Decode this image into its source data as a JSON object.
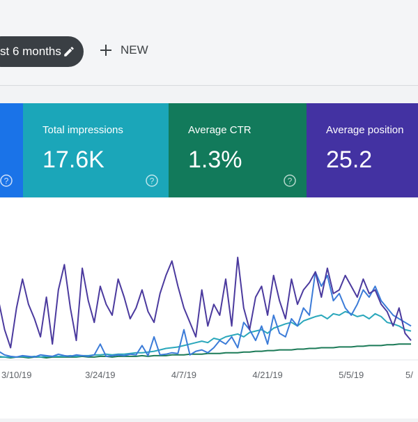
{
  "filter": {
    "label": "st 6 months"
  },
  "new_button": "NEW",
  "cards": [
    {
      "title": "Total impressions",
      "value": "17.6K"
    },
    {
      "title": "Average CTR",
      "value": "1.3%"
    },
    {
      "title": "Average position",
      "value": "25.2"
    }
  ],
  "chart_data": {
    "type": "line",
    "categories": [
      null,
      null,
      null,
      "3/10/19",
      null,
      null,
      null,
      null,
      null,
      null,
      null,
      null,
      null,
      null,
      null,
      null,
      null,
      "3/24/19",
      null,
      null,
      null,
      null,
      null,
      null,
      null,
      null,
      null,
      null,
      null,
      null,
      null,
      "4/7/19",
      null,
      null,
      null,
      null,
      null,
      null,
      null,
      null,
      null,
      null,
      null,
      null,
      null,
      "4/21/19",
      null,
      null,
      null,
      null,
      null,
      null,
      null,
      null,
      null,
      null,
      null,
      null,
      null,
      "5/5/19",
      null,
      null,
      null,
      null,
      null,
      null,
      null,
      null,
      null,
      "5/"
    ],
    "series": [
      {
        "color": "#4b3a9e",
        "values": [
          80,
          40,
          15,
          70,
          110,
          75,
          55,
          30,
          85,
          20,
          95,
          130,
          70,
          25,
          125,
          80,
          50,
          100,
          75,
          60,
          110,
          85,
          55,
          70,
          95,
          65,
          50,
          90,
          115,
          135,
          100,
          70,
          50,
          30,
          95,
          45,
          75,
          60,
          110,
          45,
          140,
          70,
          40,
          85,
          100,
          60,
          115,
          80,
          55,
          110,
          75,
          95,
          105,
          120,
          85,
          125,
          90,
          95,
          115,
          100,
          85,
          110,
          90,
          95,
          75,
          65,
          45,
          70,
          35,
          25
        ]
      },
      {
        "color": "#3b7bd8",
        "values": [
          10,
          5,
          3,
          2,
          4,
          3,
          2,
          5,
          4,
          3,
          6,
          4,
          3,
          5,
          4,
          3,
          5,
          20,
          3,
          4,
          5,
          4,
          6,
          5,
          18,
          4,
          30,
          5,
          6,
          8,
          7,
          40,
          5,
          10,
          12,
          8,
          15,
          25,
          20,
          30,
          15,
          50,
          40,
          25,
          45,
          20,
          60,
          35,
          30,
          55,
          45,
          70,
          60,
          120,
          100,
          115,
          80,
          90,
          70,
          60,
          75,
          95,
          85,
          100,
          80,
          70,
          60,
          55,
          50,
          45
        ]
      },
      {
        "color": "#2aa7bb",
        "values": [
          3,
          2,
          2,
          2,
          3,
          2,
          3,
          2,
          3,
          3,
          3,
          3,
          4,
          3,
          4,
          4,
          5,
          5,
          6,
          5,
          6,
          6,
          7,
          8,
          8,
          9,
          10,
          12,
          14,
          15,
          16,
          18,
          20,
          22,
          24,
          22,
          28,
          26,
          30,
          32,
          34,
          30,
          36,
          38,
          40,
          35,
          42,
          45,
          48,
          50,
          45,
          52,
          55,
          58,
          60,
          55,
          62,
          60,
          65,
          62,
          58,
          60,
          55,
          62,
          58,
          50,
          48,
          45,
          40,
          38
        ]
      },
      {
        "color": "#1b7a57",
        "values": [
          2,
          2,
          1,
          2,
          2,
          1,
          2,
          2,
          1,
          2,
          2,
          2,
          2,
          2,
          3,
          2,
          2,
          3,
          3,
          2,
          3,
          3,
          3,
          3,
          4,
          3,
          4,
          4,
          4,
          5,
          5,
          5,
          6,
          6,
          6,
          7,
          7,
          7,
          8,
          8,
          8,
          9,
          9,
          10,
          10,
          11,
          11,
          12,
          12,
          12,
          13,
          13,
          14,
          14,
          15,
          15,
          15,
          16,
          16,
          16,
          17,
          17,
          18,
          18,
          18,
          19,
          19,
          20,
          20,
          20
        ]
      }
    ]
  }
}
